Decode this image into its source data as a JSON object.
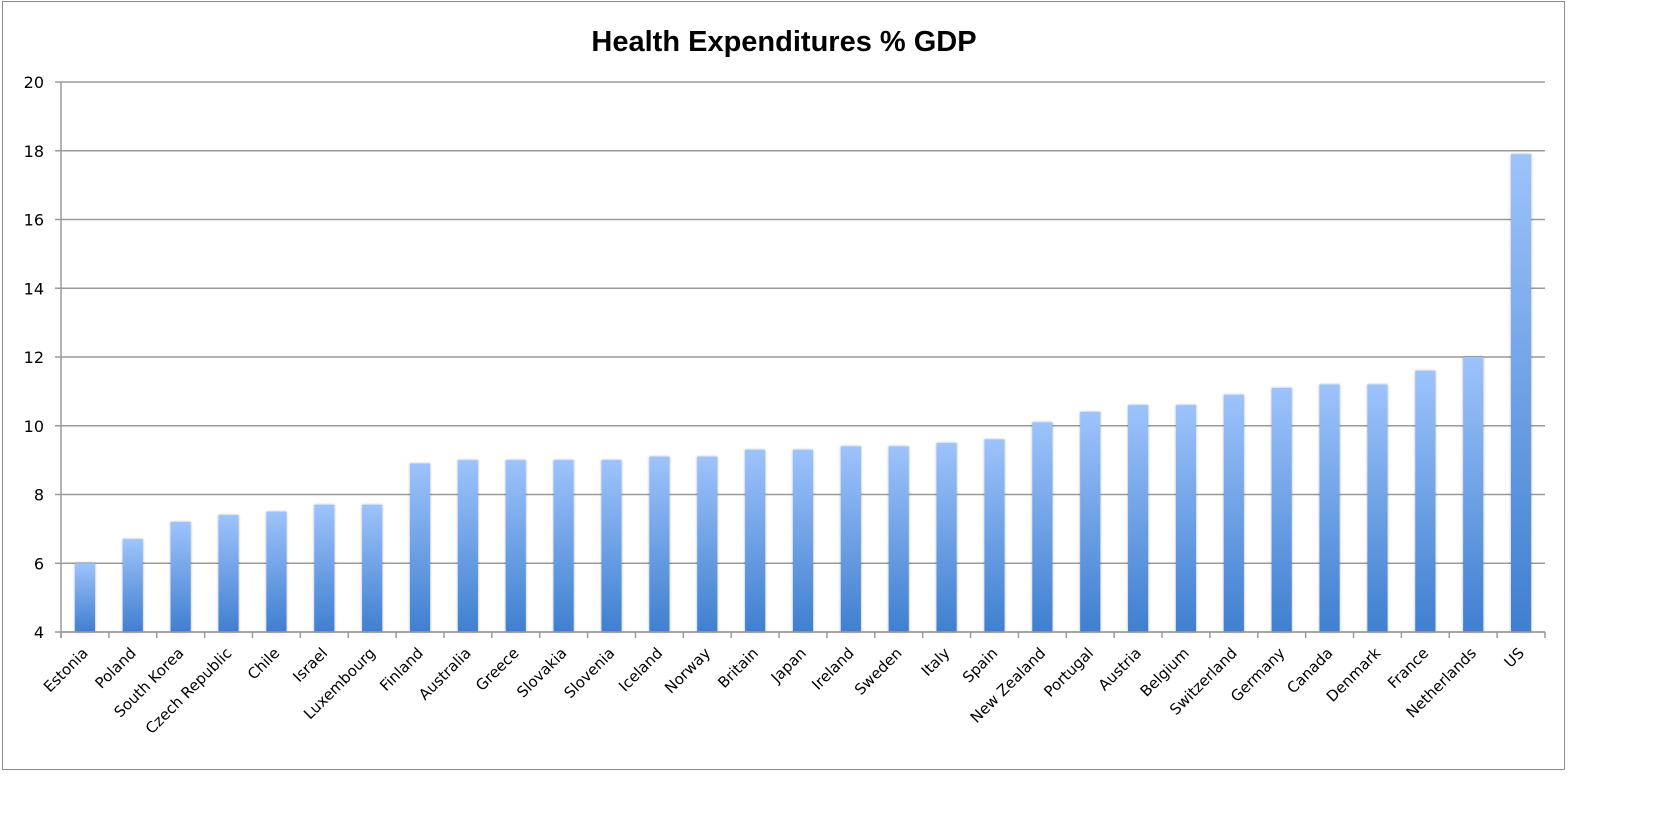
{
  "chart_data": {
    "type": "bar",
    "title": "Health Expenditures % GDP",
    "xlabel": "",
    "ylabel": "",
    "ylim": [
      4,
      20
    ],
    "yticks": [
      4,
      6,
      8,
      10,
      12,
      14,
      16,
      18,
      20
    ],
    "grid": true,
    "legend": "none",
    "bar_color_top": "#9dc3fb",
    "bar_color_bottom": "#3f7fd0",
    "categories": [
      "Estonia",
      "Poland",
      "South Korea",
      "Czech Republic",
      "Chile",
      "Israel",
      "Luxembourg",
      "Finland",
      "Australia",
      "Greece",
      "Slovakia",
      "Slovenia",
      "Iceland",
      "Norway",
      "Britain",
      "Japan",
      "Ireland",
      "Sweden",
      "Italy",
      "Spain",
      "New Zealand",
      "Portugal",
      "Austria",
      "Belgium",
      "Switzerland",
      "Germany",
      "Canada",
      "Denmark",
      "France",
      "Netherlands",
      "US"
    ],
    "values": [
      6.0,
      6.7,
      7.2,
      7.4,
      7.5,
      7.7,
      7.7,
      8.9,
      9.0,
      9.0,
      9.0,
      9.0,
      9.1,
      9.1,
      9.3,
      9.3,
      9.4,
      9.4,
      9.5,
      9.6,
      10.1,
      10.4,
      10.6,
      10.6,
      10.9,
      11.1,
      11.2,
      11.2,
      11.6,
      12.0,
      17.9
    ]
  }
}
